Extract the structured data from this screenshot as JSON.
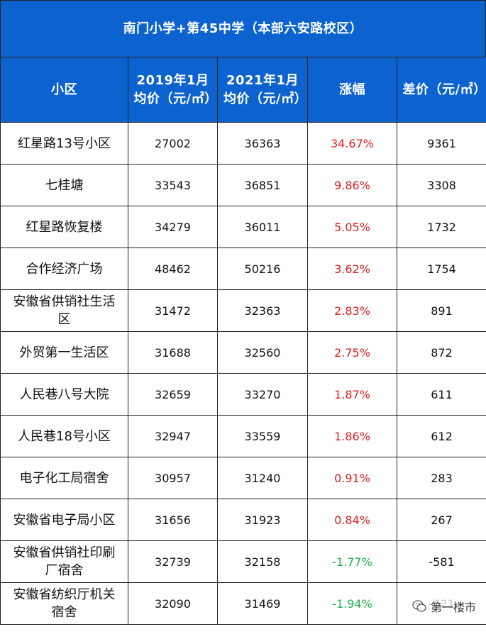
{
  "title": "南门小学+第45中学（本部六安路校区）",
  "headers": {
    "col1": "小区",
    "col2": "2019年1月均价（元/㎡）",
    "col3": "2021年1月均价（元/㎡）",
    "col4": "涨幅",
    "col5": "差价（元/㎡）"
  },
  "rows": [
    {
      "name": "红星路13号小区",
      "p2019": "27002",
      "p2021": "36363",
      "change": "34.67%",
      "diff": "9361",
      "dir": "up"
    },
    {
      "name": "七桂塘",
      "p2019": "33543",
      "p2021": "36851",
      "change": "9.86%",
      "diff": "3308",
      "dir": "up"
    },
    {
      "name": "红星路恢复楼",
      "p2019": "34279",
      "p2021": "36011",
      "change": "5.05%",
      "diff": "1732",
      "dir": "up"
    },
    {
      "name": "合作经济广场",
      "p2019": "48462",
      "p2021": "50216",
      "change": "3.62%",
      "diff": "1754",
      "dir": "up"
    },
    {
      "name": "安徽省供销社生活区",
      "p2019": "31472",
      "p2021": "32363",
      "change": "2.83%",
      "diff": "891",
      "dir": "up"
    },
    {
      "name": "外贸第一生活区",
      "p2019": "31688",
      "p2021": "32560",
      "change": "2.75%",
      "diff": "872",
      "dir": "up"
    },
    {
      "name": "人民巷八号大院",
      "p2019": "32659",
      "p2021": "33270",
      "change": "1.87%",
      "diff": "611",
      "dir": "up"
    },
    {
      "name": "人民巷18号小区",
      "p2019": "32947",
      "p2021": "33559",
      "change": "1.86%",
      "diff": "612",
      "dir": "up"
    },
    {
      "name": "电子化工局宿舍",
      "p2019": "30957",
      "p2021": "31240",
      "change": "0.91%",
      "diff": "283",
      "dir": "up"
    },
    {
      "name": "安徽省电子局小区",
      "p2019": "31656",
      "p2021": "31923",
      "change": "0.84%",
      "diff": "267",
      "dir": "up"
    },
    {
      "name": "安徽省供销社印刷厂宿舍",
      "p2019": "32739",
      "p2021": "32158",
      "change": "-1.77%",
      "diff": "-581",
      "dir": "down"
    },
    {
      "name": "安徽省纺织厅机关宿舍",
      "p2019": "32090",
      "p2021": "31469",
      "change": "-1.94%",
      "diff": "-621",
      "dir": "down"
    }
  ],
  "watermark": {
    "text": "第一楼市"
  },
  "colors": {
    "header_bg": "#0c63cf",
    "up": "#e02020",
    "down": "#19b24b"
  }
}
